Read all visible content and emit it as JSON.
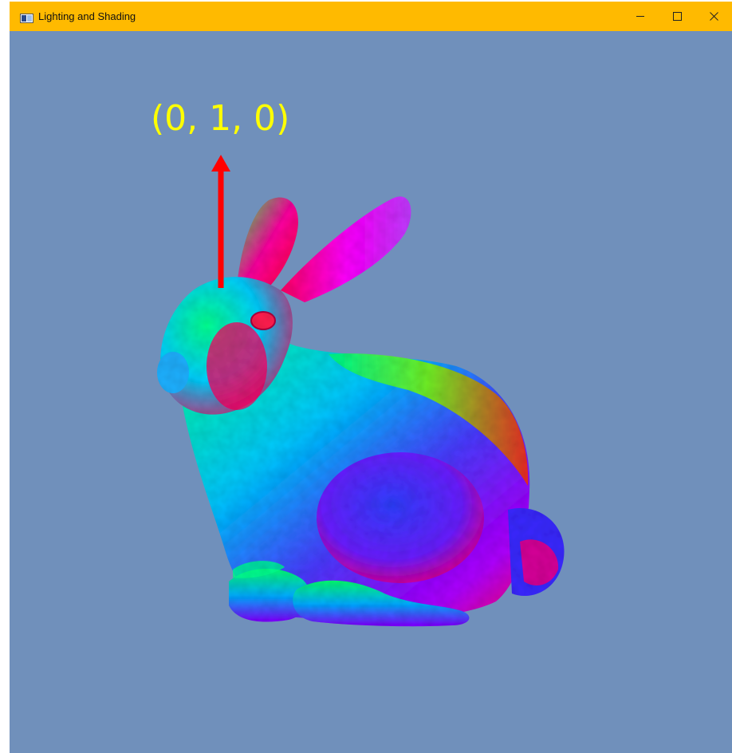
{
  "window": {
    "title": "Lighting and Shading",
    "titlebar_color": "#ffba00",
    "background_color": "#7090bb",
    "controls": {
      "minimize_icon": "minimize-icon",
      "maximize_icon": "maximize-icon",
      "close_icon": "close-icon"
    }
  },
  "scene": {
    "model": "bunny",
    "shading": "normal-map colors (RGB)",
    "vector_label": "(0, 1, 0)",
    "vector_label_color": "#ffff00",
    "arrow_color": "#ff0000"
  }
}
